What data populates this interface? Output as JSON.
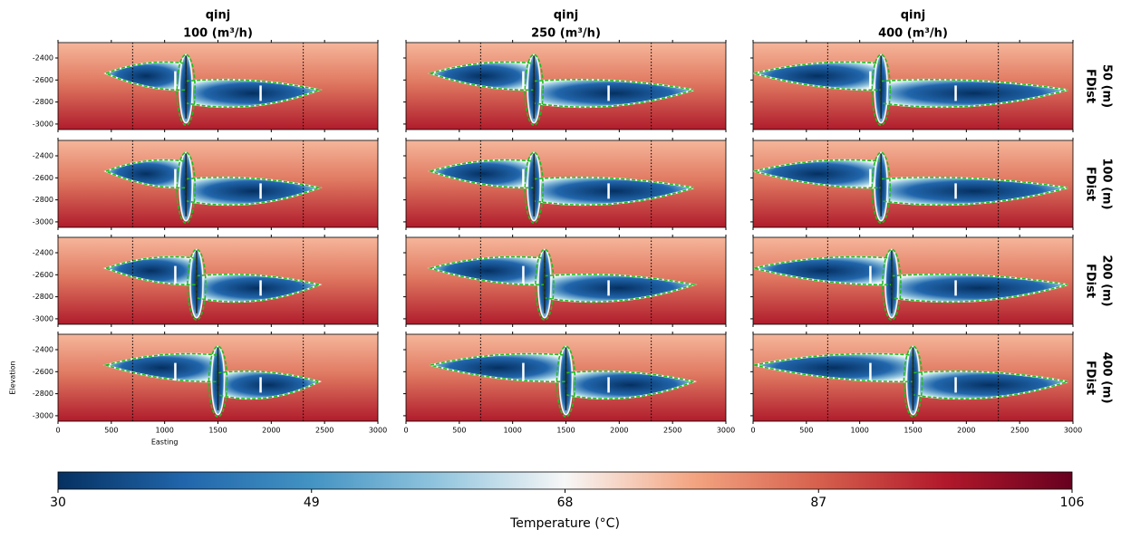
{
  "chart_data": {
    "type": "heatmap",
    "columns": [
      {
        "title": "qinj",
        "subtitle": "100 (m³/h)"
      },
      {
        "title": "qinj",
        "subtitle": "250 (m³/h)"
      },
      {
        "title": "qinj",
        "subtitle": "400 (m³/h)"
      }
    ],
    "rows": [
      {
        "title": "FDist",
        "subtitle": "50 (m)",
        "fault_x": 1200
      },
      {
        "title": "FDist",
        "subtitle": "100 (m)",
        "fault_x": 1200
      },
      {
        "title": "FDist",
        "subtitle": "200 (m)",
        "fault_x": 1300
      },
      {
        "title": "FDist",
        "subtitle": "400 (m)",
        "fault_x": 1500
      }
    ],
    "xlabel": "Easting",
    "ylabel": "Elevation",
    "xlim": [
      0,
      3000
    ],
    "xticks": [
      0,
      500,
      1000,
      1500,
      2000,
      2500,
      3000
    ],
    "ylim": [
      -3050,
      -2260
    ],
    "yticks": [
      -2400,
      -2600,
      -2800,
      -3000
    ],
    "wells": [
      1100,
      1900
    ],
    "vlines": [
      700,
      2300
    ],
    "colorbar": {
      "label": "Temperature (°C)",
      "lim": [
        30,
        106
      ],
      "ticks": [
        30,
        49,
        68,
        87,
        106
      ],
      "colors": [
        "#053061",
        "#2166ac",
        "#4393c3",
        "#92c5de",
        "#f7f7f7",
        "#f4a582",
        "#d6604d",
        "#b2182b",
        "#67001f"
      ]
    },
    "contour_color": "#22bb22"
  }
}
